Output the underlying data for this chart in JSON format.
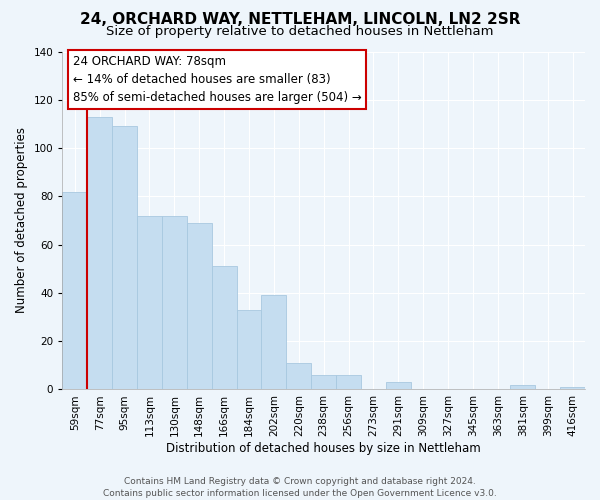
{
  "title": "24, ORCHARD WAY, NETTLEHAM, LINCOLN, LN2 2SR",
  "subtitle": "Size of property relative to detached houses in Nettleham",
  "xlabel": "Distribution of detached houses by size in Nettleham",
  "ylabel": "Number of detached properties",
  "categories": [
    "59sqm",
    "77sqm",
    "95sqm",
    "113sqm",
    "130sqm",
    "148sqm",
    "166sqm",
    "184sqm",
    "202sqm",
    "220sqm",
    "238sqm",
    "256sqm",
    "273sqm",
    "291sqm",
    "309sqm",
    "327sqm",
    "345sqm",
    "363sqm",
    "381sqm",
    "399sqm",
    "416sqm"
  ],
  "values": [
    82,
    113,
    109,
    72,
    72,
    69,
    51,
    33,
    39,
    11,
    6,
    6,
    0,
    3,
    0,
    0,
    0,
    0,
    2,
    0,
    1
  ],
  "bar_color": "#c5ddf0",
  "bar_edge_color": "#a8c8e0",
  "highlight_line_color": "#cc0000",
  "ylim": [
    0,
    140
  ],
  "yticks": [
    0,
    20,
    40,
    60,
    80,
    100,
    120,
    140
  ],
  "annotation_line1": "24 ORCHARD WAY: 78sqm",
  "annotation_line2": "← 14% of detached houses are smaller (83)",
  "annotation_line3": "85% of semi-detached houses are larger (504) →",
  "annotation_box_color": "#ffffff",
  "annotation_box_edge_color": "#cc0000",
  "footer_line1": "Contains HM Land Registry data © Crown copyright and database right 2024.",
  "footer_line2": "Contains public sector information licensed under the Open Government Licence v3.0.",
  "background_color": "#eef5fb",
  "grid_color": "#ffffff",
  "title_fontsize": 11,
  "subtitle_fontsize": 9.5,
  "axis_label_fontsize": 8.5,
  "tick_fontsize": 7.5,
  "annotation_fontsize": 8.5,
  "footer_fontsize": 6.5
}
